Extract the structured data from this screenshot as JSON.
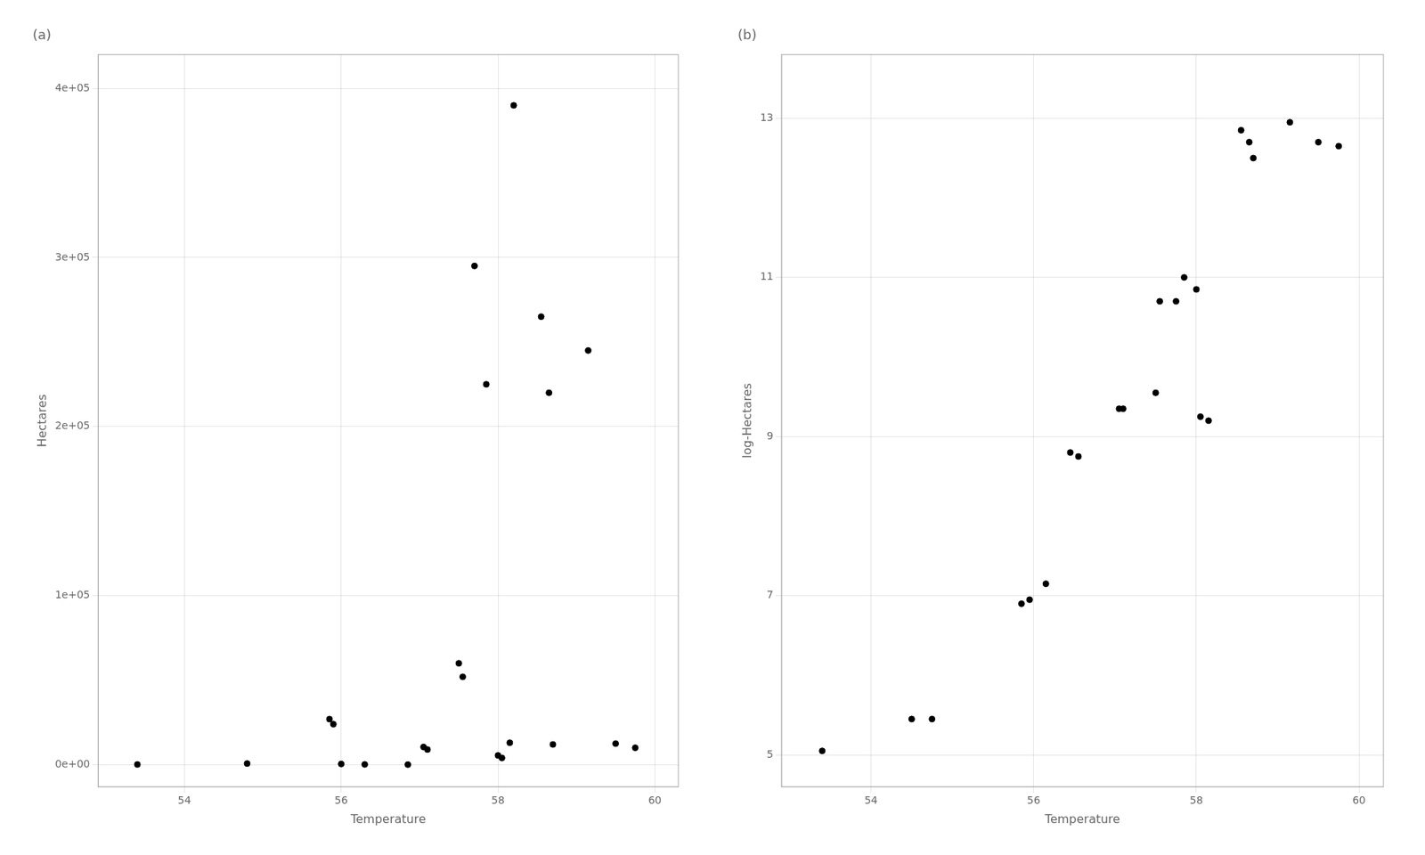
{
  "chart_data": [
    {
      "type": "scatter",
      "title": "(a)",
      "xlabel": "Temperature",
      "ylabel": "Hectares",
      "x": [
        53.4,
        54.8,
        55.85,
        55.9,
        56.0,
        56.3,
        56.85,
        57.05,
        57.1,
        57.5,
        57.55,
        57.7,
        57.85,
        58.0,
        58.05,
        58.15,
        58.2,
        58.55,
        58.65,
        58.7,
        59.15,
        59.5,
        59.75
      ],
      "values": [
        160,
        700,
        27000,
        24000,
        450,
        200,
        100,
        10500,
        9000,
        60000,
        52000,
        295000,
        225000,
        5500,
        4000,
        13000,
        390000,
        265000,
        220000,
        12000,
        245000,
        12500,
        10000
      ],
      "color": "#000000",
      "xlim": [
        52.9,
        60.3
      ],
      "xticks": [
        54,
        56,
        58,
        60
      ],
      "ylim": [
        -13000,
        420000
      ],
      "yticks": [
        {
          "value": 0,
          "label": "0e+00"
        },
        {
          "value": 100000,
          "label": "1e+05"
        },
        {
          "value": 200000,
          "label": "2e+05"
        },
        {
          "value": 300000,
          "label": "3e+05"
        },
        {
          "value": 400000,
          "label": "4e+05"
        }
      ],
      "grid": true
    },
    {
      "type": "scatter",
      "title": "(b)",
      "xlabel": "Temperature",
      "ylabel": "log-Hectares",
      "x": [
        53.4,
        54.5,
        54.75,
        55.85,
        55.95,
        56.15,
        56.45,
        56.55,
        57.05,
        57.1,
        57.5,
        57.55,
        57.75,
        57.85,
        58.0,
        58.05,
        58.15,
        58.55,
        58.65,
        58.7,
        59.15,
        59.5,
        59.75
      ],
      "values": [
        5.05,
        5.45,
        5.45,
        6.9,
        6.95,
        7.15,
        8.8,
        8.75,
        9.35,
        9.35,
        9.55,
        10.7,
        10.7,
        11.0,
        10.85,
        9.25,
        9.2,
        12.85,
        12.7,
        12.5,
        12.95,
        12.7,
        12.65
      ],
      "color": "#000000",
      "xlim": [
        52.9,
        60.3
      ],
      "xticks": [
        54,
        56,
        58,
        60
      ],
      "ylim": [
        4.6,
        13.8
      ],
      "yticks": [
        5,
        7,
        9,
        11,
        13
      ],
      "grid": true
    }
  ]
}
